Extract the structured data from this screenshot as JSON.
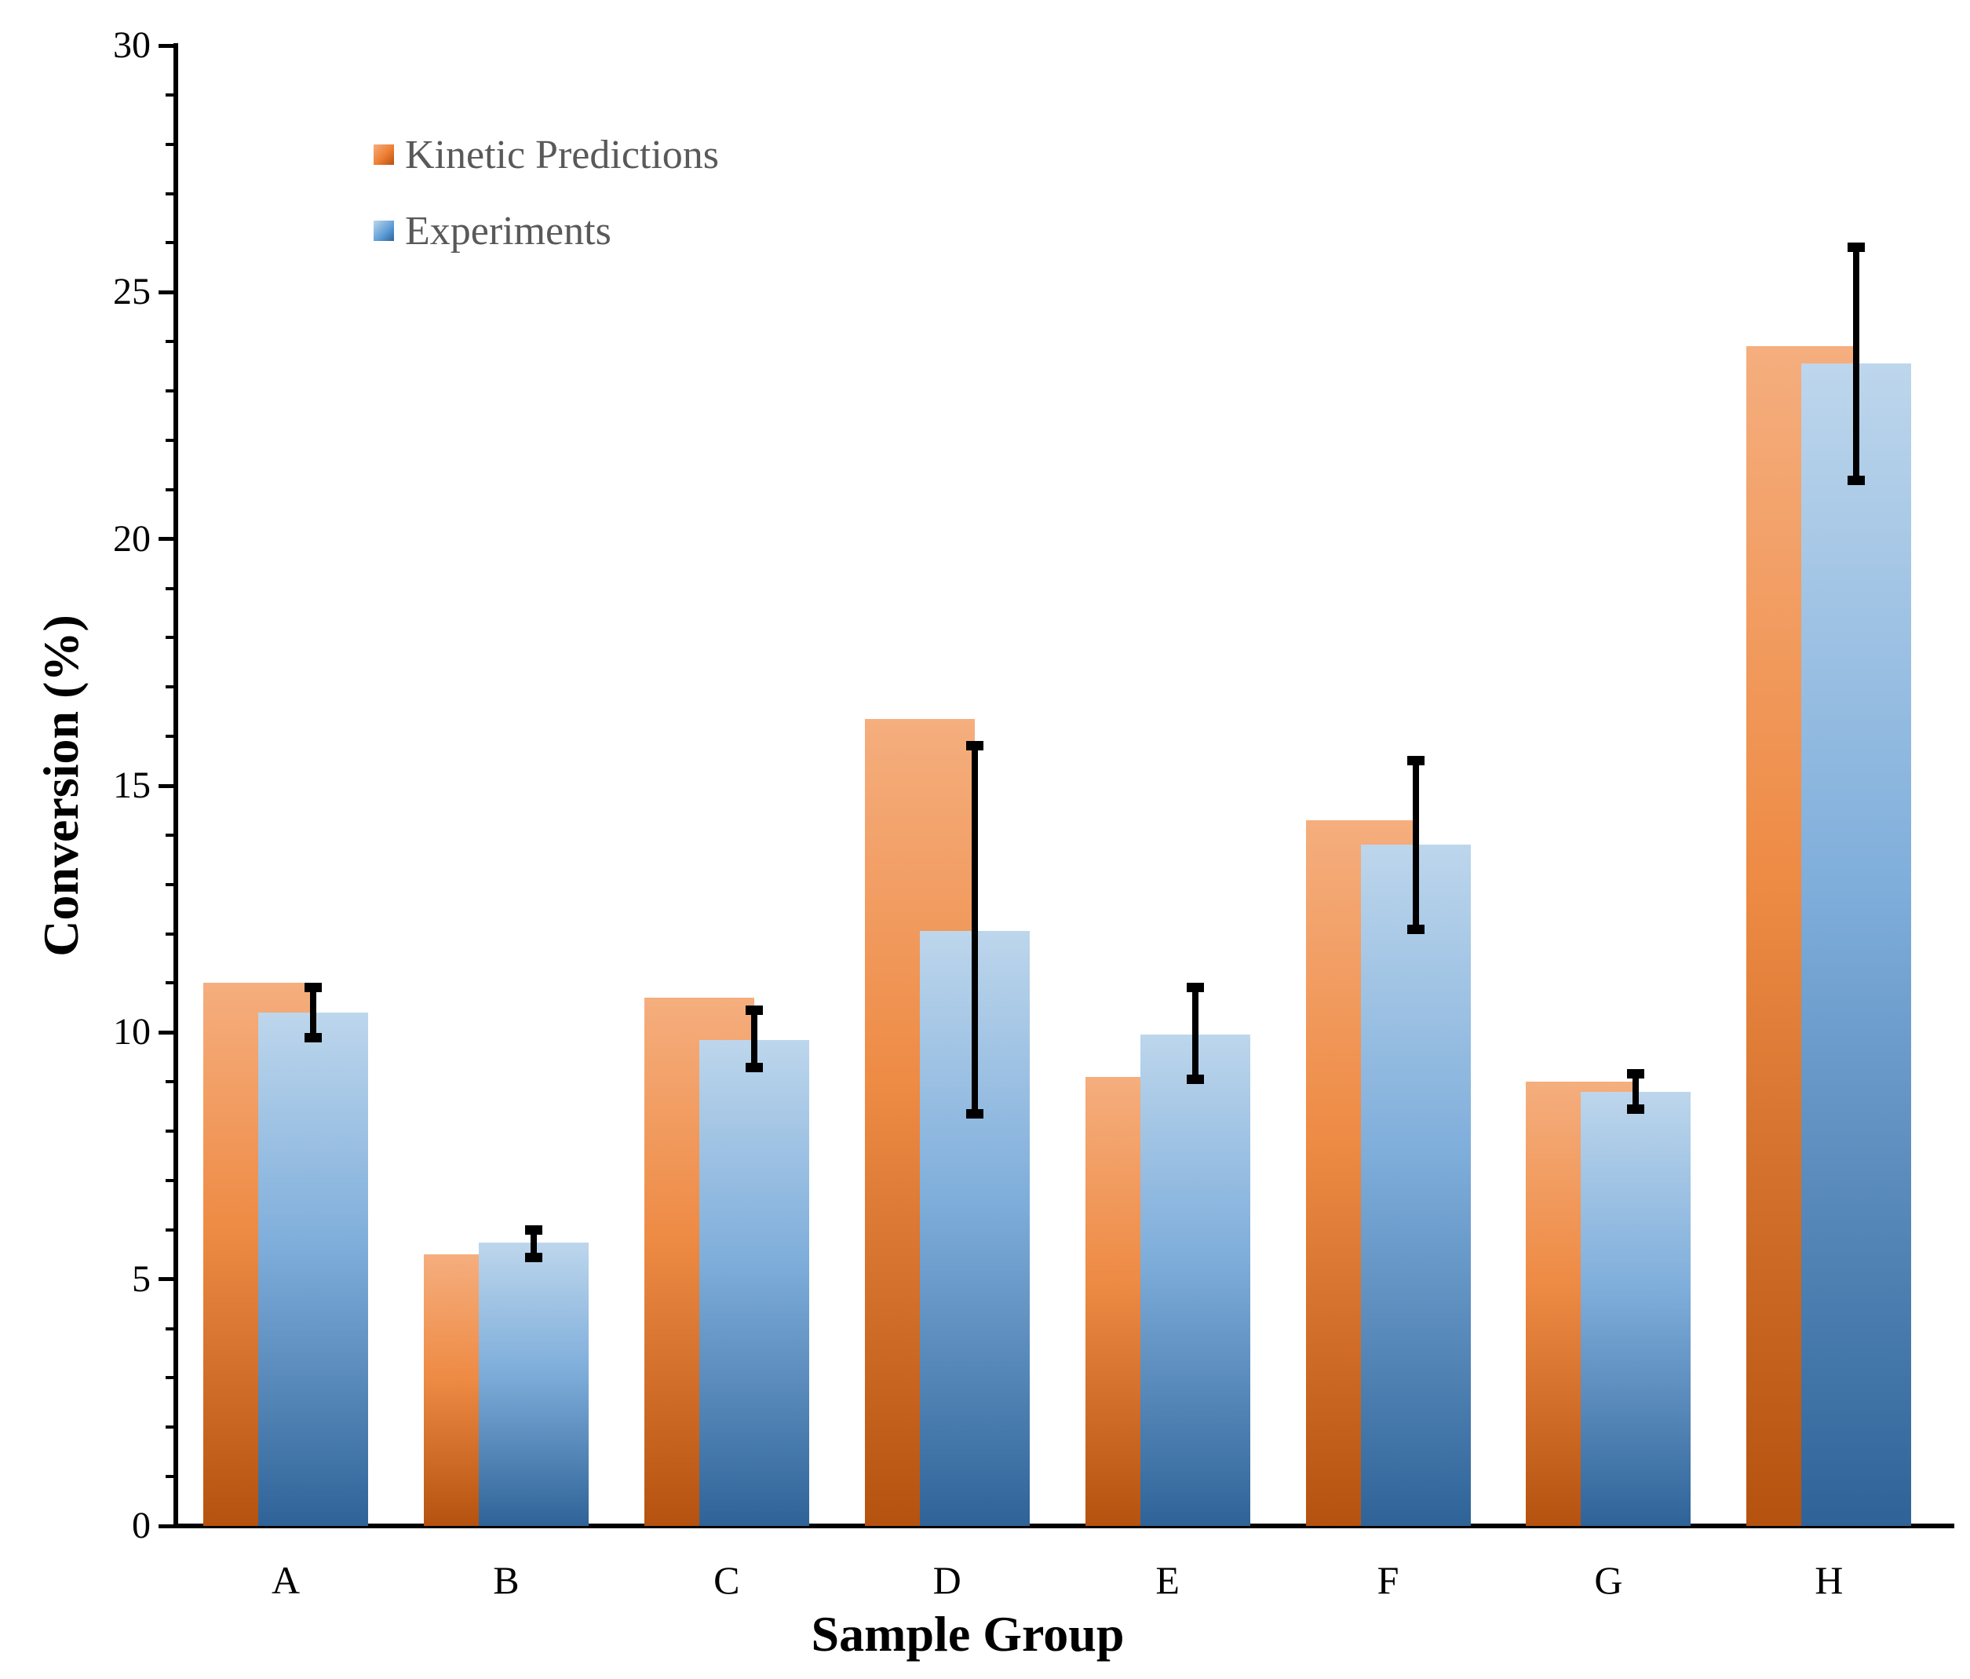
{
  "chart_data": {
    "type": "bar",
    "title": "",
    "xlabel": "Sample Group",
    "ylabel": "Conversion (%)",
    "categories": [
      "A",
      "B",
      "C",
      "D",
      "E",
      "F",
      "G",
      "H"
    ],
    "series": [
      {
        "name": "Kinetic Predictions",
        "color": "#ED7D31",
        "gradient_top": "#F5AE7E",
        "gradient_mid": "#EE8B45",
        "gradient_bottom": "#B5520F",
        "values": [
          11.0,
          5.5,
          10.7,
          16.35,
          9.1,
          14.3,
          9.0,
          23.9
        ]
      },
      {
        "name": "Experiments",
        "color": "#5B9BD5",
        "gradient_top": "#BDD6EC",
        "gradient_mid": "#7FAEDB",
        "gradient_bottom": "#2F6398",
        "values": [
          10.4,
          5.75,
          9.85,
          12.05,
          9.95,
          13.8,
          8.8,
          23.55
        ],
        "error_low": [
          9.8,
          5.35,
          9.2,
          8.25,
          8.95,
          12.0,
          8.35,
          21.1
        ],
        "error_high": [
          11.0,
          6.1,
          10.55,
          15.9,
          11.0,
          15.6,
          9.25,
          26.0
        ],
        "error_color": "#000000"
      }
    ],
    "ylim": [
      0,
      30
    ],
    "y_major_step": 5,
    "y_minor_step": 1,
    "y_ticks": [
      0,
      5,
      10,
      15,
      20,
      25,
      30
    ],
    "grid": false,
    "legend_position": "inside-top-left",
    "axis_color": "#000000",
    "text_color": "#000000",
    "legend_text_color": "#595959",
    "background_color": "#FFFFFF"
  }
}
